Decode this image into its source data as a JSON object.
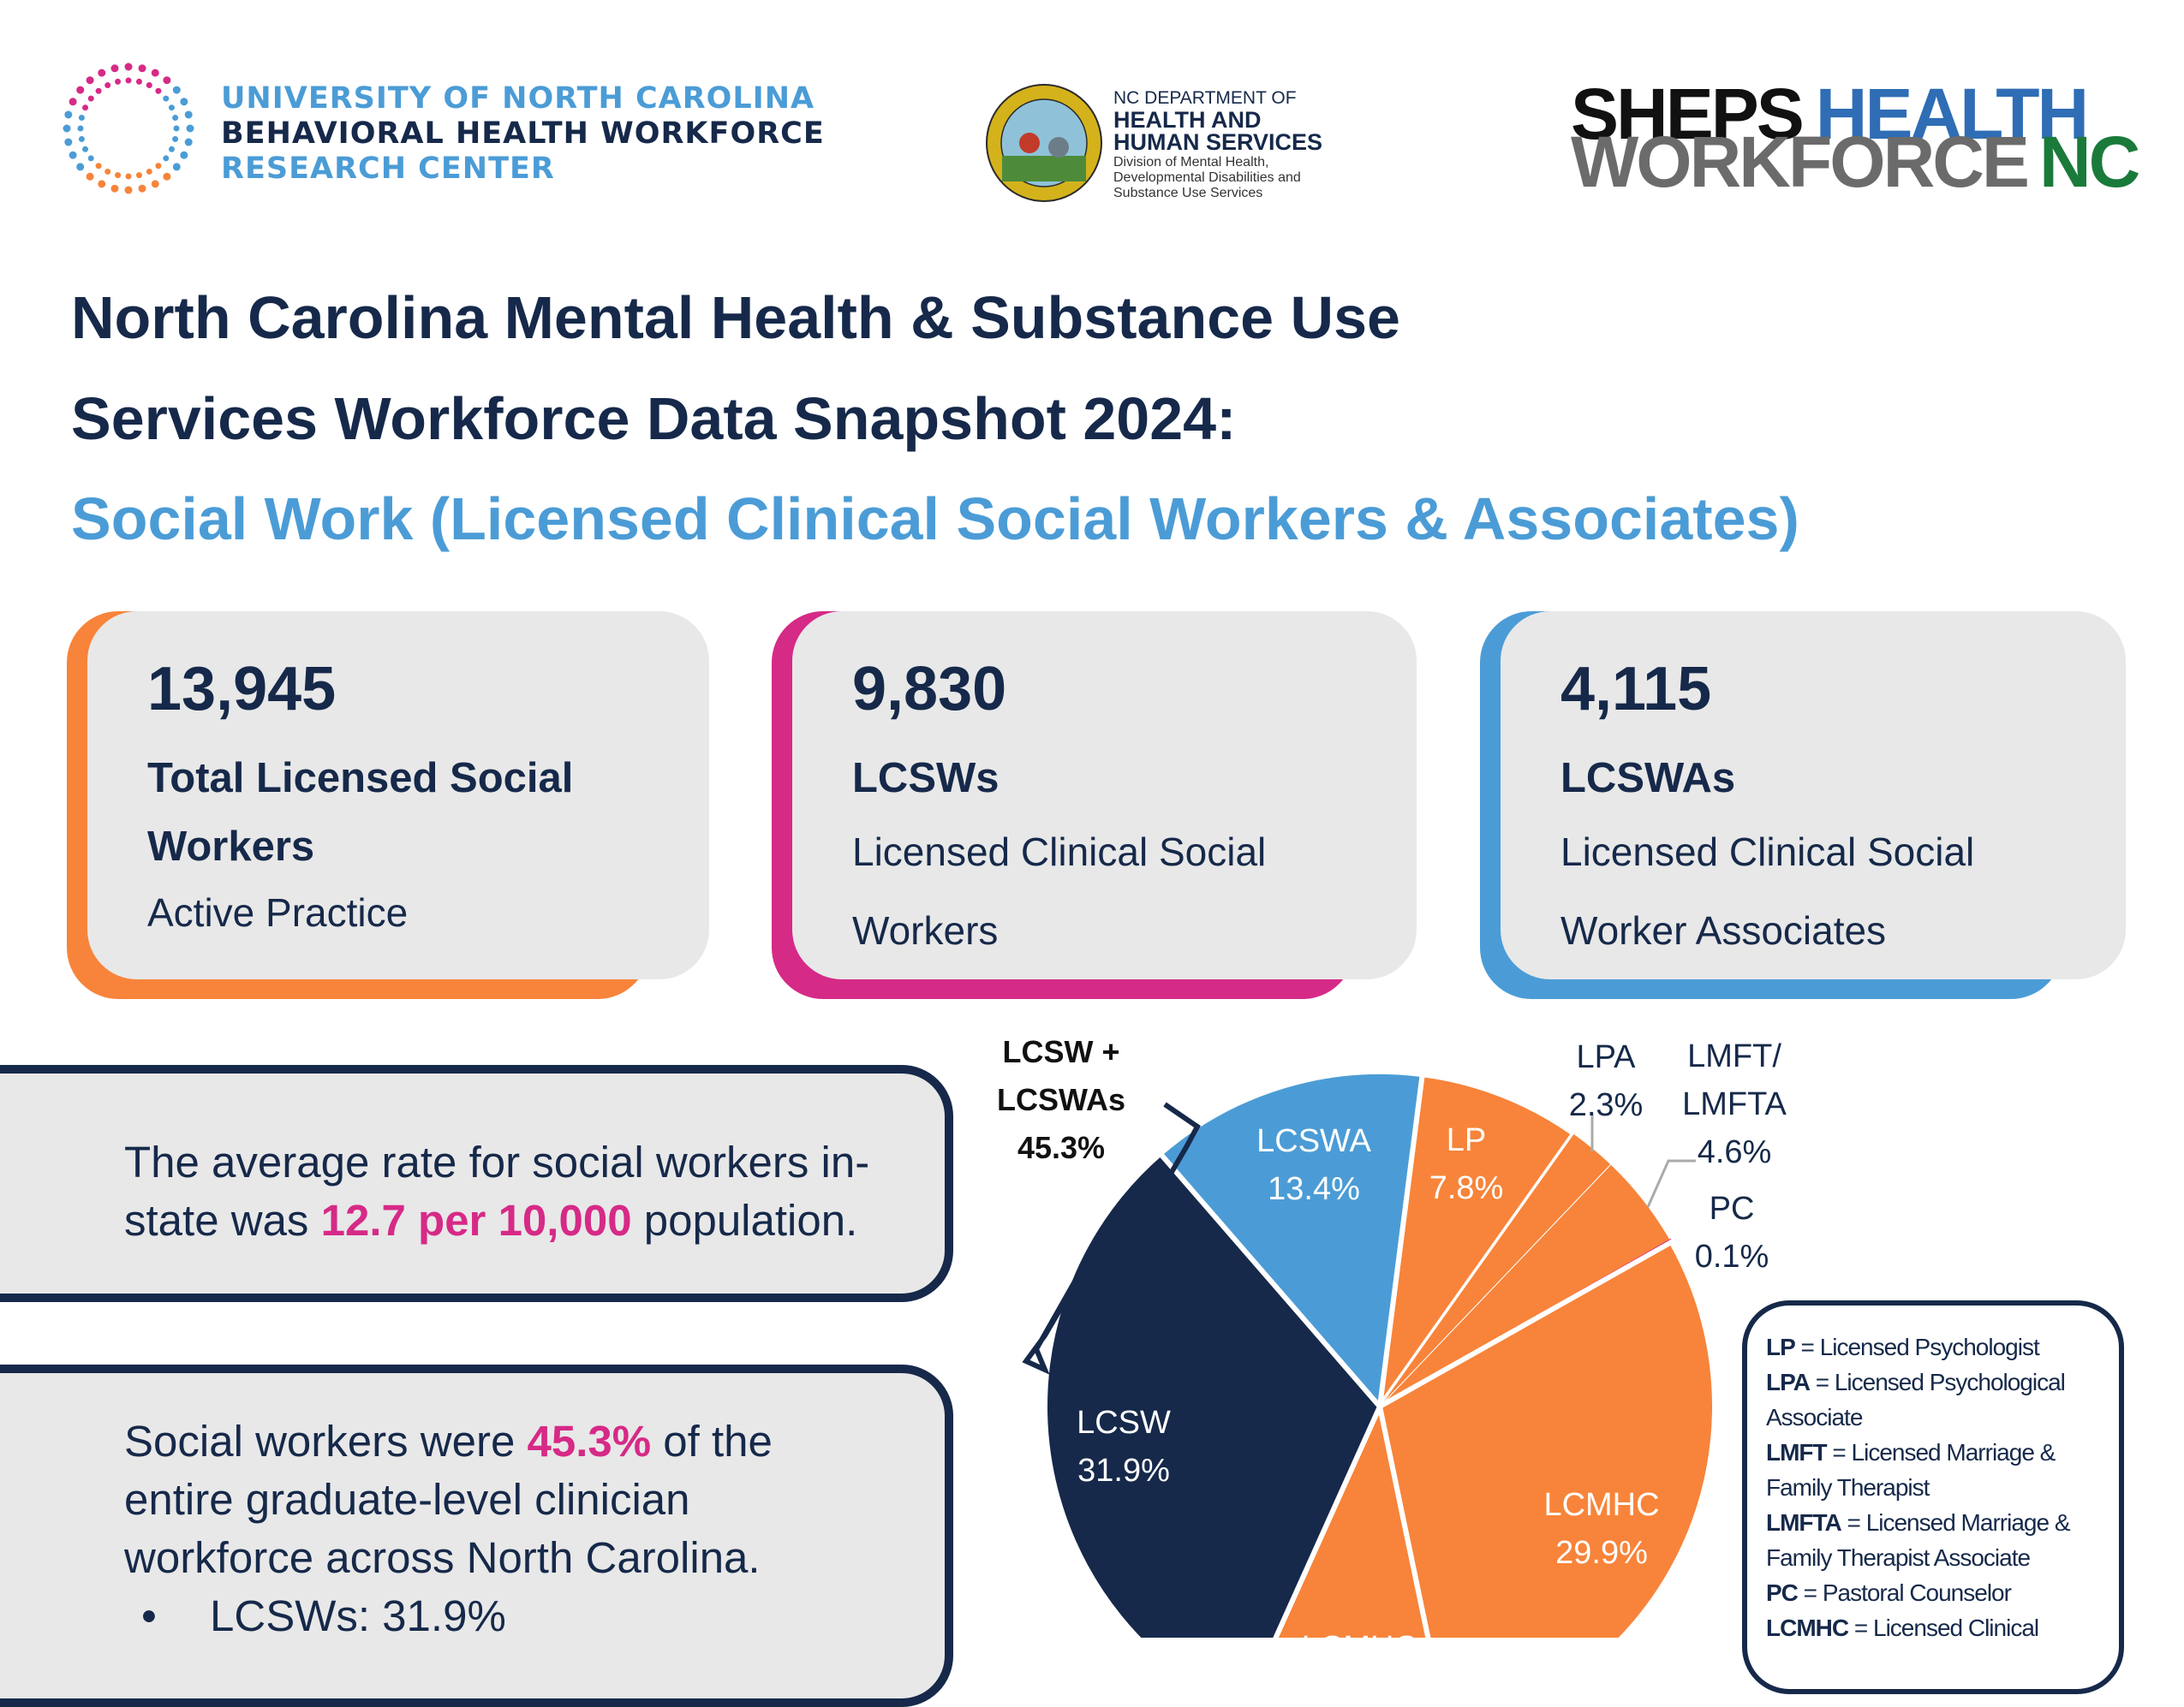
{
  "header": {
    "unc_logo": {
      "line1": "UNIVERSITY OF NORTH CAROLINA",
      "line2": "BEHAVIORAL HEALTH WORKFORCE",
      "line3": "RESEARCH CENTER"
    },
    "dhhs_logo": {
      "line1": "NC DEPARTMENT OF",
      "line2": "HEALTH AND",
      "line3": "HUMAN SERVICES",
      "line4": "Division of Mental Health,",
      "line5": "Developmental Disabilities and",
      "line6": "Substance Use Services"
    },
    "sheps_logo": {
      "word1": "SHEPS",
      "word2": "HEALTH",
      "word3": "WORKFORCE",
      "word4": "NC"
    }
  },
  "title": {
    "line1": "North Carolina Mental Health & Substance Use",
    "line2": "Services Workforce Data Snapshot 2024:",
    "subtitle": "Social Work (Licensed Clinical Social Workers & Associates)"
  },
  "cards": [
    {
      "number": "13,945",
      "label": "Total Licensed Social Workers",
      "sub": "Active Practice",
      "color": "#f7843a"
    },
    {
      "number": "9,830",
      "label": "LCSWs",
      "sub": "Licensed Clinical Social Workers",
      "color": "#d62a87"
    },
    {
      "number": "4,115",
      "label": "LCSWAs",
      "sub": "Licensed Clinical Social Worker Associates",
      "color": "#4b9cd6"
    }
  ],
  "stat1": {
    "pre": "The average rate for social workers in-state was ",
    "highlight": "12.7 per 10,000",
    "post": " population."
  },
  "stat2": {
    "pre": "Social workers were ",
    "highlight": "45.3%",
    "post": " of the entire graduate-level clinician workforce across North Carolina.",
    "bullet1": "LCSWs: 31.9%"
  },
  "chart_data": {
    "type": "pie",
    "slices": [
      {
        "name": "LP",
        "label": "LP",
        "pct_label": "7.8%",
        "value": 7.8,
        "color": "#f7843a"
      },
      {
        "name": "LPA",
        "label": "LPA",
        "pct_label": "2.3%",
        "value": 2.3,
        "color": "#f7843a"
      },
      {
        "name": "LMFT/LMFTA",
        "label": "LMFT/ LMFTA",
        "pct_label": "4.6%",
        "value": 4.6,
        "color": "#f7843a"
      },
      {
        "name": "PC",
        "label": "PC",
        "pct_label": "0.1%",
        "value": 0.1,
        "color": "#d62a87"
      },
      {
        "name": "LCMHC",
        "label": "LCMHC",
        "pct_label": "29.9%",
        "value": 29.9,
        "color": "#f7843a"
      },
      {
        "name": "LCMHCA",
        "label": "LCMHCA",
        "value": 10.0,
        "color": "#f7843a"
      },
      {
        "name": "LCSW",
        "label": "LCSW",
        "pct_label": "31.9%",
        "value": 31.9,
        "color": "#16294a"
      },
      {
        "name": "LCSWA",
        "label": "LCSWA",
        "pct_label": "13.4%",
        "value": 13.4,
        "color": "#4b9cd6"
      }
    ],
    "group_annotation": {
      "line1": "LCSW +",
      "line2": "LCSWAs",
      "line3": "45.3%"
    }
  },
  "legend": [
    {
      "abbr": "LP",
      "text": " = Licensed Psychologist"
    },
    {
      "abbr": "LPA",
      "text": " = Licensed Psychological Associate"
    },
    {
      "abbr": "LMFT",
      "text": " = Licensed Marriage & Family Therapist"
    },
    {
      "abbr": "LMFTA",
      "text": " = Licensed Marriage & Family Therapist Associate"
    },
    {
      "abbr": "PC",
      "text": " = Pastoral Counselor"
    },
    {
      "abbr": "LCMHC",
      "text": " = Licensed Clinical"
    }
  ]
}
